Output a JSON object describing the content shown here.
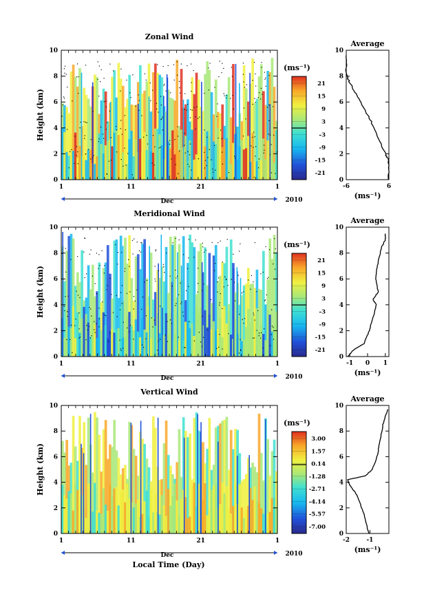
{
  "figure": {
    "bottom_xlabel": "Local Time (Day)",
    "month_label": "Dec",
    "year_label": "2010",
    "ylabel": "Height (km)",
    "profile_title": "Average",
    "unit_label": "(ms⁻¹)"
  },
  "chart_data": [
    {
      "type": "heatmap",
      "title": "Zonal Wind",
      "xlabel": "Local Time (Day)",
      "ylabel": "Height (km)",
      "x_ticks": [
        "1",
        "11",
        "21",
        "1"
      ],
      "y_ticks": [
        0,
        2,
        4,
        6,
        8,
        10
      ],
      "ylim": [
        0,
        10
      ],
      "colorbar_unit": "(ms⁻¹)",
      "colorbar_ticks": [
        "21",
        "15",
        "9",
        "3",
        "-3",
        "-9",
        "-15",
        "-21"
      ],
      "colorbar_range": [
        -24,
        24
      ],
      "colormap": [
        "#2a2a8c",
        "#2050d8",
        "#18b8f0",
        "#40e0d0",
        "#a8e878",
        "#f0f040",
        "#f8a828",
        "#e03020"
      ]
    },
    {
      "type": "heatmap",
      "title": "Meridional Wind",
      "xlabel": "Local Time (Day)",
      "ylabel": "Height (km)",
      "x_ticks": [
        "1",
        "11",
        "21",
        "1"
      ],
      "y_ticks": [
        0,
        2,
        4,
        6,
        8,
        10
      ],
      "ylim": [
        0,
        10
      ],
      "colorbar_unit": "(ms⁻¹)",
      "colorbar_ticks": [
        "21",
        "15",
        "9",
        "3",
        "-3",
        "-9",
        "-15",
        "-21"
      ],
      "colorbar_range": [
        -24,
        24
      ],
      "colormap": [
        "#2a2a8c",
        "#2050d8",
        "#18b8f0",
        "#40e0d0",
        "#a8e878",
        "#f0f040",
        "#f8a828",
        "#e03020"
      ]
    },
    {
      "type": "heatmap",
      "title": "Vertical Wind",
      "xlabel": "Local Time (Day)",
      "ylabel": "Height (km)",
      "x_ticks": [
        "1",
        "11",
        "21",
        "1"
      ],
      "y_ticks": [
        0,
        2,
        4,
        6,
        8,
        10
      ],
      "ylim": [
        0,
        10
      ],
      "colorbar_unit": "(ms⁻¹)",
      "colorbar_ticks": [
        "3.00",
        "1.57",
        "0.14",
        "-1.28",
        "-2.71",
        "-4.14",
        "-5.57",
        "-7.00"
      ],
      "colorbar_range": [
        -7.7,
        3.7
      ],
      "colormap": [
        "#2a2a8c",
        "#2050d8",
        "#18b8f0",
        "#40e0d0",
        "#a8e878",
        "#f0f040",
        "#f8a828",
        "#e03020"
      ]
    },
    {
      "type": "line",
      "title": "Average",
      "xlabel": "(ms⁻¹)",
      "ylabel": "",
      "xlim": [
        -6,
        6
      ],
      "x_ticks": [
        "-6",
        "6"
      ],
      "y_ticks": [
        0,
        2,
        4,
        6,
        8,
        10
      ],
      "ylim": [
        0,
        10
      ],
      "x": [
        5.8,
        6.0,
        5.0,
        3.0,
        1.0,
        -1.0,
        -3.0,
        -5.0,
        -6.0,
        -6.0
      ],
      "y": [
        0.0,
        1.5,
        2.0,
        3.2,
        4.5,
        5.5,
        6.5,
        7.5,
        8.1,
        9.6
      ]
    },
    {
      "type": "line",
      "title": "Average",
      "xlabel": "(ms⁻¹)",
      "ylabel": "",
      "xlim": [
        -1.2,
        1.2
      ],
      "x_ticks": [
        "-1",
        "0",
        "1"
      ],
      "y_ticks": [
        0,
        2,
        4,
        6,
        8,
        10
      ],
      "ylim": [
        0,
        10
      ],
      "x": [
        -1.1,
        -0.8,
        -0.2,
        0.1,
        0.3,
        0.5,
        0.3,
        0.6,
        0.45,
        0.55,
        0.8,
        1.0,
        1.0
      ],
      "y": [
        0.0,
        0.5,
        1.0,
        2.0,
        3.0,
        4.0,
        4.4,
        5.0,
        6.0,
        7.0,
        8.5,
        9.0,
        9.5
      ]
    },
    {
      "type": "line",
      "title": "Average",
      "xlabel": "(ms⁻¹)",
      "ylabel": "",
      "xlim": [
        -2,
        -0.2
      ],
      "x_ticks": [
        "-2",
        "-1"
      ],
      "y_ticks": [
        0,
        2,
        4,
        6,
        8,
        10
      ],
      "ylim": [
        0,
        10
      ],
      "x": [
        -1.05,
        -1.25,
        -1.55,
        -1.85,
        -1.95,
        -1.2,
        -0.9,
        -0.7,
        -0.6,
        -0.45,
        -0.25
      ],
      "y": [
        0.0,
        1.5,
        3.0,
        3.8,
        4.2,
        4.5,
        5.0,
        6.0,
        7.0,
        8.5,
        9.7
      ]
    }
  ]
}
